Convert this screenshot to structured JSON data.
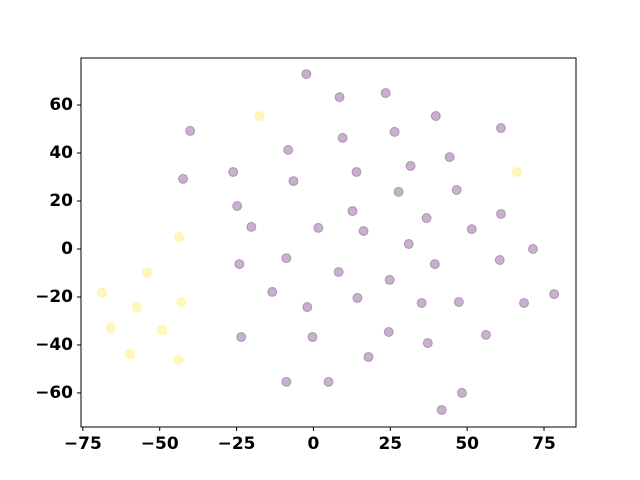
{
  "chart_data": {
    "type": "scatter",
    "xlim": [
      -75.6,
      85.4
    ],
    "ylim": [
      -74.2,
      79.6
    ],
    "xticks": [
      {
        "value": -75,
        "label": "−75"
      },
      {
        "value": -50,
        "label": "−50"
      },
      {
        "value": -25,
        "label": "−25"
      },
      0,
      25,
      50,
      75
    ],
    "yticks": [
      {
        "value": -60,
        "label": "−60"
      },
      {
        "value": -40,
        "label": "−40"
      },
      {
        "value": -20,
        "label": "−20"
      },
      0,
      20,
      40,
      60
    ],
    "alpha": 0.3,
    "series": [
      {
        "color": "#440154",
        "x": [
          -2.3,
          8.5,
          23.5,
          -40.1,
          39.8,
          61,
          9.5,
          26.4,
          -8.2,
          44.3,
          -26.1,
          -42.4,
          -6.5,
          14,
          31.6,
          27.7,
          46.6,
          -24.8,
          12.7,
          36.8,
          61,
          -20.2,
          1.6,
          16.3,
          51.5,
          31,
          71.4,
          -8.8,
          -24.1,
          39.5,
          60.6,
          8.2,
          24.8,
          -13.4,
          14.3,
          35.2,
          47.3,
          68.5,
          78.3,
          -2,
          24.5,
          56.1,
          -23.5,
          -0.3,
          37.2,
          17.9,
          -8.8,
          4.9,
          48.3,
          41.7
        ],
        "values": [
          72.9,
          63.3,
          65,
          49.2,
          55.4,
          50.4,
          46.3,
          48.8,
          41.3,
          38.3,
          32.1,
          29.2,
          28.3,
          32.1,
          34.6,
          23.8,
          24.6,
          17.9,
          15.8,
          12.9,
          14.6,
          9.2,
          8.8,
          7.5,
          8.3,
          2.1,
          0,
          -3.8,
          -6.3,
          -6.3,
          -4.6,
          -9.6,
          -12.9,
          -17.9,
          -20.4,
          -22.5,
          -22.1,
          -22.5,
          -18.8,
          -24.2,
          -34.6,
          -35.8,
          -36.7,
          -36.7,
          -39.2,
          -45,
          -55.4,
          -55.4,
          -60,
          -67.1
        ]
      },
      {
        "color": "#fde725",
        "x": [
          -17.6,
          66.2,
          -43.7,
          -54.1,
          -68.8,
          -57.4,
          -43,
          -65.9,
          -49.2,
          -59.7,
          -44
        ],
        "values": [
          55.4,
          32.1,
          5,
          -10,
          -18.3,
          -24.2,
          -22.1,
          -32.9,
          -33.8,
          -43.8,
          -46.3
        ]
      }
    ]
  }
}
